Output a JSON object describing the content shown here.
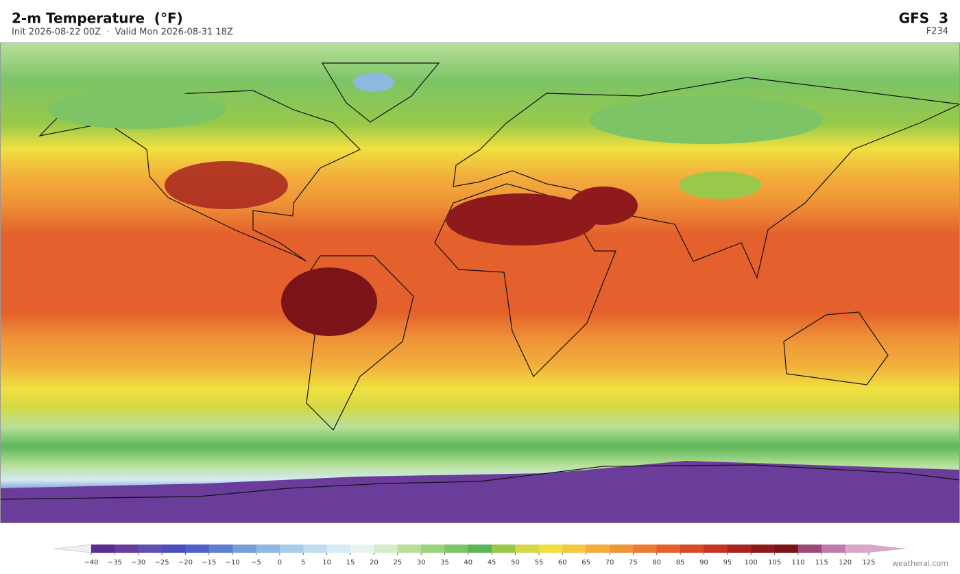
{
  "header": {
    "title": "2-m Temperature  (°F)",
    "subtitle": "Init 2026-08-22 00Z  ·  Valid Mon 2026-08-31 18Z",
    "model": "GFS  3",
    "forecast_hour": "F234"
  },
  "colorbar": {
    "ticks": [
      {
        "value": -40,
        "label": "−40"
      },
      {
        "value": -35,
        "label": "−35"
      },
      {
        "value": -30,
        "label": "−30"
      },
      {
        "value": -25,
        "label": "−25"
      },
      {
        "value": -20,
        "label": "−20"
      },
      {
        "value": -15,
        "label": "−15"
      },
      {
        "value": -10,
        "label": "−10"
      },
      {
        "value": -5,
        "label": "−5"
      },
      0,
      5,
      10,
      15,
      20,
      25,
      30,
      35,
      40,
      45,
      50,
      55,
      60,
      65,
      70,
      75,
      80,
      85,
      90,
      95,
      100,
      105,
      110,
      115,
      120,
      125
    ],
    "colors": [
      "#5b2d8e",
      "#6a3d9a",
      "#6050b0",
      "#4a4fc0",
      "#4f62c8",
      "#5f7fd0",
      "#7a9ed8",
      "#8fb8e0",
      "#a8cbe8",
      "#c0dcef",
      "#d6ebf3",
      "#e8f4f2",
      "#d4ecc8",
      "#b8e09a",
      "#9cd27c",
      "#7cc466",
      "#5cb656",
      "#99c94a",
      "#d4d848",
      "#f0e040",
      "#f5c842",
      "#f3ad3c",
      "#ef9538",
      "#eb7a33",
      "#e4602c",
      "#d84a28",
      "#c43524",
      "#a82420",
      "#8e1a1c",
      "#7a1418",
      "#9c4a7a",
      "#c07ab0",
      "#d8a8cc"
    ],
    "under_color": "#f0eef5",
    "over_color": "#d8a8cc"
  },
  "watermark": "weatherai.com"
}
